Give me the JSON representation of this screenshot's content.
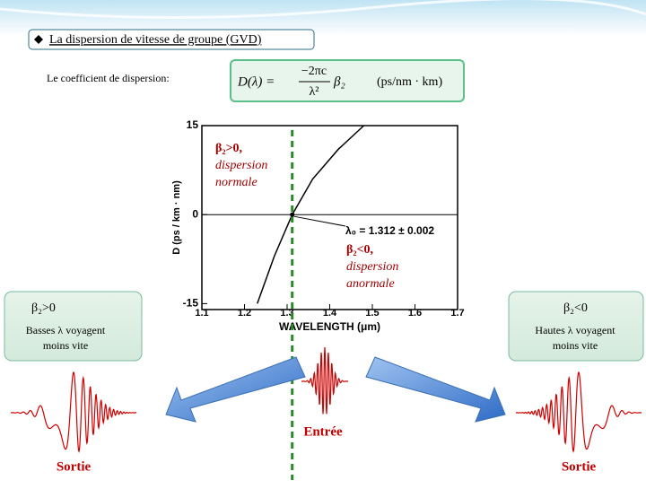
{
  "title": "La dispersion de vitesse de groupe (GVD)",
  "coefficient": {
    "label": "Le coefficient de dispersion:",
    "lhs": "D(λ) =",
    "numerator": "−2πc",
    "denominator": "λ²",
    "factor": "β₂",
    "unit": "(ps/nm · km)"
  },
  "plot": {
    "type": "line",
    "y_label": "D (ps / km · nm)",
    "x_label": "WAVELENGTH (μm)",
    "xlim": [
      1.1,
      1.7
    ],
    "ylim": [
      -16,
      15
    ],
    "xticks": [
      1.1,
      1.2,
      1.3,
      1.4,
      1.5,
      1.6,
      1.7
    ],
    "yticks": [
      15,
      0,
      -15
    ],
    "curve": {
      "x": [
        1.23,
        1.27,
        1.312,
        1.36,
        1.42,
        1.48
      ],
      "y": [
        -15,
        -7,
        0,
        6,
        11,
        15
      ],
      "color": "#000000"
    },
    "zero_wavelength": "λ₀ = 1.312 ± 0.002",
    "normal": [
      "β₂>0,",
      "dispersion",
      "normale"
    ],
    "anomalous": [
      "β₂<0,",
      "dispersion",
      "anormale"
    ]
  },
  "left_box": {
    "title": "β₂>0",
    "lines": [
      "Basses λ voyagent",
      "moins vite"
    ]
  },
  "right_box": {
    "title": "β₂<0",
    "lines": [
      "Hautes λ voyagent",
      "moins vite"
    ]
  },
  "input_label": "Entrée",
  "left_output_label": "Sortie",
  "right_output_label": "Sortie"
}
